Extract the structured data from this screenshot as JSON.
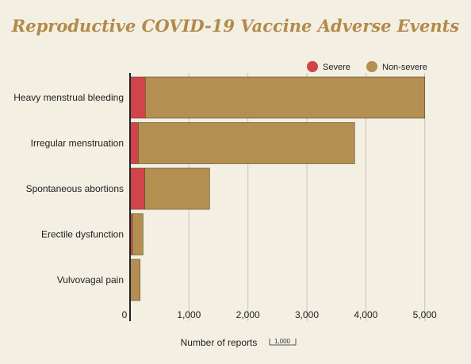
{
  "chart_data": {
    "type": "bar",
    "orientation": "horizontal",
    "stacked": true,
    "title": "Reproductive COVID-19 Vaccine Adverse Events",
    "xlabel": "Number of reports",
    "scale_note": "1,000",
    "categories": [
      "Heavy menstrual bleeding",
      "Irregular menstruation",
      "Spontaneous abortions",
      "Erectile dysfunction",
      "Vulvovagal pain"
    ],
    "series": [
      {
        "name": "Severe",
        "color": "#d0444a",
        "values": [
          260,
          140,
          250,
          40,
          10
        ]
      },
      {
        "name": "Non-severe",
        "color": "#b38f52",
        "values": [
          4740,
          3670,
          1100,
          180,
          160
        ]
      }
    ],
    "xlim": [
      0,
      5300
    ],
    "xticks": [
      0,
      1000,
      2000,
      3000,
      4000,
      5000
    ],
    "xtick_labels": [
      "0",
      "1,000",
      "2,000",
      "3,000",
      "4,000",
      "5,000"
    ],
    "grid": true,
    "legend_position": "top-right"
  }
}
